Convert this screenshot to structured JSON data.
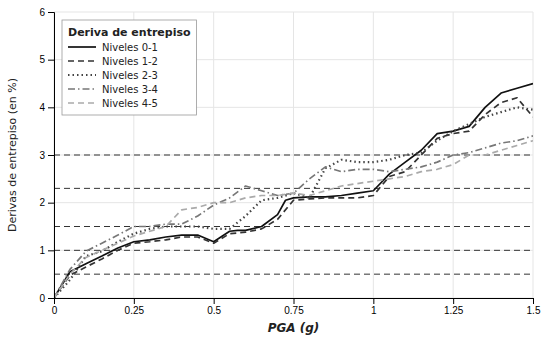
{
  "chart_data": {
    "type": "line",
    "x_label": "PGA (g)",
    "y_label": "Derivas de entrepiso (en %)",
    "legend_title": "Deriva de entrepiso",
    "xlim": [
      0,
      1.5
    ],
    "ylim": [
      0,
      6
    ],
    "xticks": [
      0,
      0.25,
      0.5,
      0.75,
      1,
      1.25,
      1.5
    ],
    "yticks": [
      0,
      1,
      2,
      3,
      4,
      5,
      6
    ],
    "grid": true,
    "legend": "top-left",
    "hlines": [
      0.5,
      1.0,
      1.5,
      2.3,
      3.0
    ],
    "series": [
      {
        "name": "Niveles 0-1",
        "color": "#111111",
        "line_style": "solid",
        "x": [
          0,
          0.05,
          0.1,
          0.15,
          0.2,
          0.25,
          0.3,
          0.35,
          0.4,
          0.45,
          0.5,
          0.55,
          0.575,
          0.6,
          0.65,
          0.7,
          0.725,
          0.75,
          0.8,
          0.85,
          0.9,
          0.95,
          1.0,
          1.05,
          1.1,
          1.15,
          1.2,
          1.25,
          1.3,
          1.35,
          1.4,
          1.45,
          1.5
        ],
        "values": [
          0,
          0.55,
          0.72,
          0.88,
          1.05,
          1.18,
          1.22,
          1.28,
          1.32,
          1.32,
          1.18,
          1.4,
          1.42,
          1.42,
          1.5,
          1.75,
          2.05,
          2.1,
          2.12,
          2.12,
          2.15,
          2.2,
          2.25,
          2.6,
          2.85,
          3.1,
          3.45,
          3.5,
          3.6,
          4.0,
          4.3,
          4.4,
          4.5
        ]
      },
      {
        "name": "Niveles 1-2",
        "color": "#333333",
        "line_style": "dashed",
        "x": [
          0,
          0.05,
          0.1,
          0.15,
          0.2,
          0.25,
          0.3,
          0.35,
          0.4,
          0.45,
          0.5,
          0.55,
          0.6,
          0.65,
          0.7,
          0.75,
          0.8,
          0.85,
          0.9,
          0.95,
          1.0,
          1.05,
          1.1,
          1.15,
          1.2,
          1.25,
          1.3,
          1.35,
          1.4,
          1.45,
          1.5
        ],
        "values": [
          0,
          0.48,
          0.65,
          0.82,
          1.0,
          1.15,
          1.18,
          1.22,
          1.28,
          1.28,
          1.15,
          1.35,
          1.38,
          1.45,
          1.65,
          2.05,
          2.08,
          2.1,
          2.1,
          2.1,
          2.15,
          2.55,
          2.65,
          3.0,
          3.35,
          3.45,
          3.5,
          3.85,
          4.1,
          4.2,
          3.8
        ]
      },
      {
        "name": "Niveles 2-3",
        "color": "#444444",
        "line_style": "dotted",
        "x": [
          0,
          0.05,
          0.1,
          0.15,
          0.2,
          0.25,
          0.3,
          0.35,
          0.4,
          0.45,
          0.5,
          0.55,
          0.6,
          0.65,
          0.7,
          0.75,
          0.8,
          0.85,
          0.9,
          0.95,
          1.0,
          1.05,
          1.1,
          1.15,
          1.2,
          1.25,
          1.3,
          1.35,
          1.4,
          1.45,
          1.5
        ],
        "values": [
          0,
          0.38,
          0.88,
          0.98,
          1.18,
          1.35,
          1.45,
          1.5,
          1.5,
          1.5,
          1.45,
          1.45,
          1.72,
          2.05,
          2.1,
          2.2,
          2.1,
          2.72,
          2.9,
          2.85,
          2.85,
          2.9,
          3.0,
          3.05,
          3.3,
          3.5,
          3.65,
          3.8,
          3.9,
          4.0,
          3.95
        ]
      },
      {
        "name": "Niveles 3-4",
        "color": "#777777",
        "line_style": "dashdot",
        "x": [
          0,
          0.05,
          0.1,
          0.15,
          0.2,
          0.25,
          0.3,
          0.35,
          0.4,
          0.45,
          0.5,
          0.55,
          0.6,
          0.65,
          0.7,
          0.75,
          0.8,
          0.85,
          0.9,
          0.95,
          1.0,
          1.05,
          1.1,
          1.15,
          1.2,
          1.25,
          1.3,
          1.35,
          1.4,
          1.45,
          1.5
        ],
        "values": [
          0,
          0.6,
          0.98,
          1.15,
          1.32,
          1.5,
          1.5,
          1.55,
          1.55,
          1.72,
          1.95,
          2.1,
          2.35,
          2.25,
          2.15,
          2.2,
          2.5,
          2.75,
          2.65,
          2.7,
          2.7,
          2.65,
          2.7,
          2.75,
          2.85,
          3.0,
          3.05,
          3.15,
          3.25,
          3.3,
          3.4
        ]
      },
      {
        "name": "Niveles 4-5",
        "color": "#aaaaaa",
        "line_style": "dashed",
        "x": [
          0,
          0.05,
          0.1,
          0.15,
          0.2,
          0.25,
          0.3,
          0.35,
          0.4,
          0.45,
          0.5,
          0.55,
          0.6,
          0.65,
          0.7,
          0.75,
          0.8,
          0.85,
          0.9,
          0.95,
          1.0,
          1.05,
          1.1,
          1.15,
          1.2,
          1.25,
          1.3,
          1.35,
          1.4,
          1.45,
          1.5
        ],
        "values": [
          0,
          0.5,
          0.85,
          1.0,
          1.15,
          1.3,
          1.4,
          1.5,
          1.85,
          1.9,
          2.0,
          2.0,
          2.1,
          2.15,
          2.15,
          2.2,
          2.15,
          2.25,
          2.35,
          2.4,
          2.45,
          2.5,
          2.55,
          2.65,
          2.7,
          2.8,
          3.0,
          3.0,
          3.1,
          3.2,
          3.3
        ]
      }
    ]
  }
}
